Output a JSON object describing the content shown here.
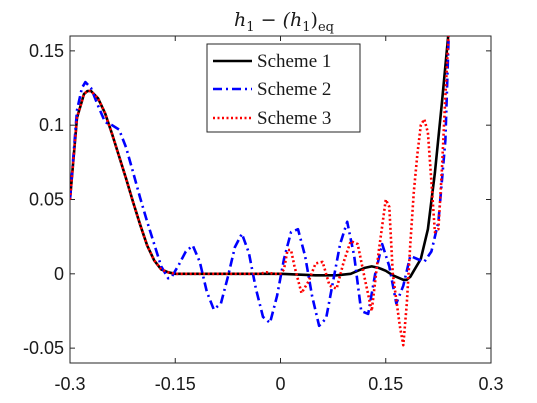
{
  "chart_data": {
    "type": "line",
    "title": "h₁ − (h₁)ₑₒ",
    "title_parts": {
      "main": "h",
      "sub1": "1",
      "mid": " − (h",
      "sub2": "1",
      "close": ")",
      "sub3": "eq"
    },
    "xlabel": "",
    "ylabel": "",
    "xlim": [
      -0.3,
      0.3
    ],
    "ylim": [
      -0.06,
      0.16
    ],
    "xticks": [
      -0.3,
      -0.15,
      0,
      0.15,
      0.3
    ],
    "xtick_labels": [
      "-0.3",
      "-0.15",
      "0",
      "0.15",
      "0.3"
    ],
    "yticks": [
      -0.05,
      0,
      0.05,
      0.1,
      0.15
    ],
    "ytick_labels": [
      "-0.05",
      "0",
      "0.05",
      "0.1",
      "0.15"
    ],
    "grid": false,
    "legend_position": "top-center",
    "series": [
      {
        "name": "Scheme 1",
        "color": "#000000",
        "dash": "solid",
        "x": [
          -0.3,
          -0.29,
          -0.28,
          -0.275,
          -0.27,
          -0.26,
          -0.25,
          -0.24,
          -0.23,
          -0.22,
          -0.21,
          -0.2,
          -0.19,
          -0.18,
          -0.17,
          -0.16,
          -0.15,
          -0.14,
          -0.12,
          -0.1,
          -0.05,
          0,
          0.05,
          0.08,
          0.1,
          0.11,
          0.12,
          0.13,
          0.14,
          0.15,
          0.16,
          0.17,
          0.175,
          0.18,
          0.185,
          0.19,
          0.2,
          0.21,
          0.22,
          0.23,
          0.24
        ],
        "y": [
          0.05,
          0.105,
          0.121,
          0.123,
          0.123,
          0.118,
          0.108,
          0.094,
          0.079,
          0.064,
          0.048,
          0.033,
          0.019,
          0.009,
          0.003,
          0.001,
          0.0,
          0.0,
          0.0,
          0.0,
          0.0,
          0.0,
          -0.001,
          -0.001,
          0.0,
          0.002,
          0.004,
          0.005,
          0.004,
          0.002,
          -0.001,
          -0.003,
          -0.004,
          -0.004,
          -0.002,
          0.002,
          0.01,
          0.03,
          0.068,
          0.115,
          0.165
        ]
      },
      {
        "name": "Scheme 2",
        "color": "#0000ff",
        "dash": "dashdot",
        "x": [
          -0.3,
          -0.29,
          -0.283,
          -0.278,
          -0.27,
          -0.26,
          -0.25,
          -0.24,
          -0.23,
          -0.22,
          -0.21,
          -0.2,
          -0.19,
          -0.18,
          -0.17,
          -0.16,
          -0.155,
          -0.145,
          -0.135,
          -0.125,
          -0.115,
          -0.105,
          -0.095,
          -0.085,
          -0.075,
          -0.065,
          -0.055,
          -0.045,
          -0.035,
          -0.025,
          -0.015,
          -0.005,
          0.005,
          0.015,
          0.025,
          0.035,
          0.045,
          0.055,
          0.065,
          0.075,
          0.085,
          0.095,
          0.105,
          0.115,
          0.125,
          0.135,
          0.145,
          0.155,
          0.165,
          0.175,
          0.185,
          0.195,
          0.205,
          0.215,
          0.225,
          0.235,
          0.24
        ],
        "y": [
          0.05,
          0.11,
          0.125,
          0.129,
          0.125,
          0.113,
          0.102,
          0.1,
          0.097,
          0.085,
          0.068,
          0.051,
          0.035,
          0.02,
          0.005,
          -0.003,
          -0.002,
          0.006,
          0.015,
          0.019,
          0.008,
          -0.012,
          -0.024,
          -0.02,
          -0.002,
          0.018,
          0.027,
          0.014,
          -0.01,
          -0.029,
          -0.033,
          -0.015,
          0.01,
          0.028,
          0.03,
          0.012,
          -0.015,
          -0.035,
          -0.03,
          -0.005,
          0.02,
          0.035,
          0.012,
          -0.025,
          -0.027,
          0.0,
          0.02,
          0.005,
          -0.02,
          -0.008,
          0.012,
          0.01,
          0.008,
          0.015,
          0.035,
          0.09,
          0.165
        ]
      },
      {
        "name": "Scheme 3",
        "color": "#ff0000",
        "dash": "dotted",
        "x": [
          -0.3,
          -0.29,
          -0.28,
          -0.275,
          -0.27,
          -0.26,
          -0.25,
          -0.24,
          -0.23,
          -0.22,
          -0.21,
          -0.2,
          -0.19,
          -0.18,
          -0.17,
          -0.16,
          -0.15,
          -0.1,
          -0.05,
          -0.03,
          -0.02,
          -0.01,
          0,
          0.005,
          0.01,
          0.015,
          0.02,
          0.03,
          0.04,
          0.05,
          0.06,
          0.07,
          0.08,
          0.09,
          0.1,
          0.11,
          0.12,
          0.13,
          0.14,
          0.15,
          0.155,
          0.16,
          0.17,
          0.175,
          0.18,
          0.185,
          0.19,
          0.195,
          0.2,
          0.205,
          0.21,
          0.215,
          0.22,
          0.225,
          0.23,
          0.235,
          0.24
        ],
        "y": [
          0.05,
          0.105,
          0.121,
          0.123,
          0.123,
          0.118,
          0.108,
          0.094,
          0.079,
          0.064,
          0.048,
          0.033,
          0.019,
          0.009,
          0.003,
          0.001,
          0.0,
          0.0,
          0.0,
          0.0,
          0.001,
          0.0,
          0.0,
          0.003,
          0.016,
          0.016,
          0.005,
          -0.013,
          -0.005,
          0.007,
          0.008,
          -0.008,
          -0.01,
          0.008,
          0.022,
          0.02,
          -0.003,
          -0.025,
          0.015,
          0.05,
          0.045,
          0.0,
          -0.035,
          -0.048,
          -0.02,
          0.02,
          0.055,
          0.08,
          0.1,
          0.104,
          0.095,
          0.062,
          0.028,
          0.03,
          0.07,
          0.12,
          0.165
        ]
      }
    ]
  }
}
